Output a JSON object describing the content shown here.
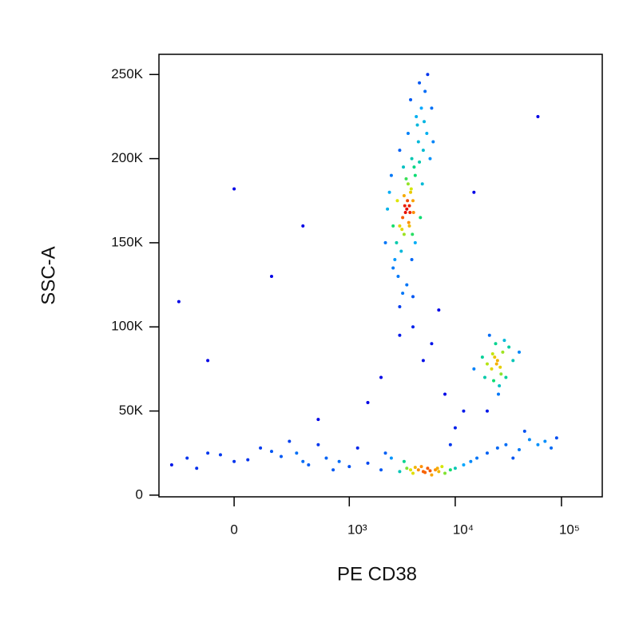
{
  "chart_data": {
    "type": "scatter",
    "xlabel": "PE CD38",
    "ylabel": "SSC-A",
    "xscale": "biexponential",
    "xlim": [
      -407,
      242000
    ],
    "ylim": [
      -1000,
      262000
    ],
    "xticks": [
      0,
      {
        "value": 1000,
        "label": "10³"
      },
      {
        "value": 10000,
        "label": "10⁴"
      },
      {
        "value": 100000,
        "label": "10⁵"
      }
    ],
    "yticks": [
      0,
      {
        "value": 50000,
        "label": "50K"
      },
      {
        "value": 100000,
        "label": "100K"
      },
      {
        "value": 150000,
        "label": "150K"
      },
      {
        "value": 200000,
        "label": "200K"
      },
      {
        "value": 250000,
        "label": "250K"
      }
    ],
    "x": [
      3500,
      3200,
      3800,
      4000,
      3000,
      2800,
      3600,
      4200,
      3300,
      3900,
      4500,
      4100,
      3700,
      3400,
      3100,
      2700,
      2900,
      3500,
      3200,
      2600,
      4400,
      4800,
      5200,
      4600,
      5500,
      3800,
      4300,
      3600,
      3000,
      2500,
      2400,
      2300,
      2600,
      5000,
      5400,
      5800,
      6200,
      4900,
      4700,
      4200,
      3900,
      3700,
      3300,
      3450,
      3650,
      3550,
      3750,
      3350,
      3850,
      3150,
      4050,
      2850,
      3950,
      3250,
      4600,
      5100,
      4000,
      2200,
      6000,
      3000,
      25000,
      22000,
      28000,
      20000,
      30000,
      24000,
      18000,
      26000,
      32000,
      21000,
      27000,
      23000,
      35000,
      19000,
      29000,
      24500,
      22500,
      26500,
      15000,
      40000,
      25500,
      23500,
      -200,
      -100,
      0,
      100,
      200,
      300,
      400,
      500,
      -300,
      150,
      50,
      250,
      -50,
      600,
      800,
      1000,
      1500,
      2000,
      2500,
      3000,
      3500,
      4000,
      4500,
      5000,
      5500,
      6000,
      6500,
      7000,
      7500,
      8000,
      9000,
      10000,
      12000,
      14000,
      16000,
      20000,
      25000,
      30000,
      40000,
      50000,
      60000,
      70000,
      80000,
      45000,
      3800,
      4200,
      5200,
      4800,
      6800,
      5800,
      3300,
      2200,
      1200,
      700,
      -150,
      350,
      90000,
      35000,
      4000,
      6000,
      8000,
      2000,
      12000,
      1500,
      -100,
      0,
      150,
      350,
      500,
      10000,
      3000,
      5000,
      60000,
      15000,
      7000,
      9000,
      20000,
      -250
    ],
    "values": [
      170000,
      165000,
      180000,
      175000,
      160000,
      150000,
      185000,
      190000,
      155000,
      200000,
      210000,
      195000,
      172000,
      168000,
      145000,
      140000,
      130000,
      125000,
      120000,
      135000,
      220000,
      230000,
      240000,
      245000,
      250000,
      235000,
      225000,
      215000,
      205000,
      190000,
      180000,
      170000,
      160000,
      205000,
      215000,
      200000,
      210000,
      185000,
      165000,
      150000,
      140000,
      160000,
      178000,
      188000,
      162000,
      175000,
      168000,
      172000,
      182000,
      158000,
      168000,
      175000,
      155000,
      195000,
      198000,
      222000,
      118000,
      150000,
      230000,
      112000,
      80000,
      75000,
      85000,
      78000,
      70000,
      90000,
      82000,
      65000,
      88000,
      95000,
      72000,
      68000,
      80000,
      70000,
      92000,
      78000,
      84000,
      76000,
      75000,
      85000,
      60000,
      82000,
      22000,
      25000,
      20000,
      28000,
      23000,
      25000,
      18000,
      30000,
      18000,
      26000,
      21000,
      32000,
      24000,
      22000,
      20000,
      17000,
      19000,
      15000,
      22000,
      14000,
      16000,
      13000,
      15000,
      14000,
      16000,
      12000,
      15000,
      14000,
      17000,
      13000,
      15000,
      16000,
      18000,
      20000,
      22000,
      25000,
      28000,
      30000,
      27000,
      33000,
      30000,
      32000,
      28000,
      38000,
      15000,
      16500,
      13500,
      17000,
      16000,
      14500,
      20000,
      25000,
      28000,
      15000,
      16000,
      20000,
      34000,
      22000,
      100000,
      90000,
      60000,
      70000,
      50000,
      55000,
      80000,
      182000,
      130000,
      160000,
      45000,
      40000,
      95000,
      80000,
      225000,
      180000,
      110000,
      30000,
      50000,
      115000
    ]
  }
}
